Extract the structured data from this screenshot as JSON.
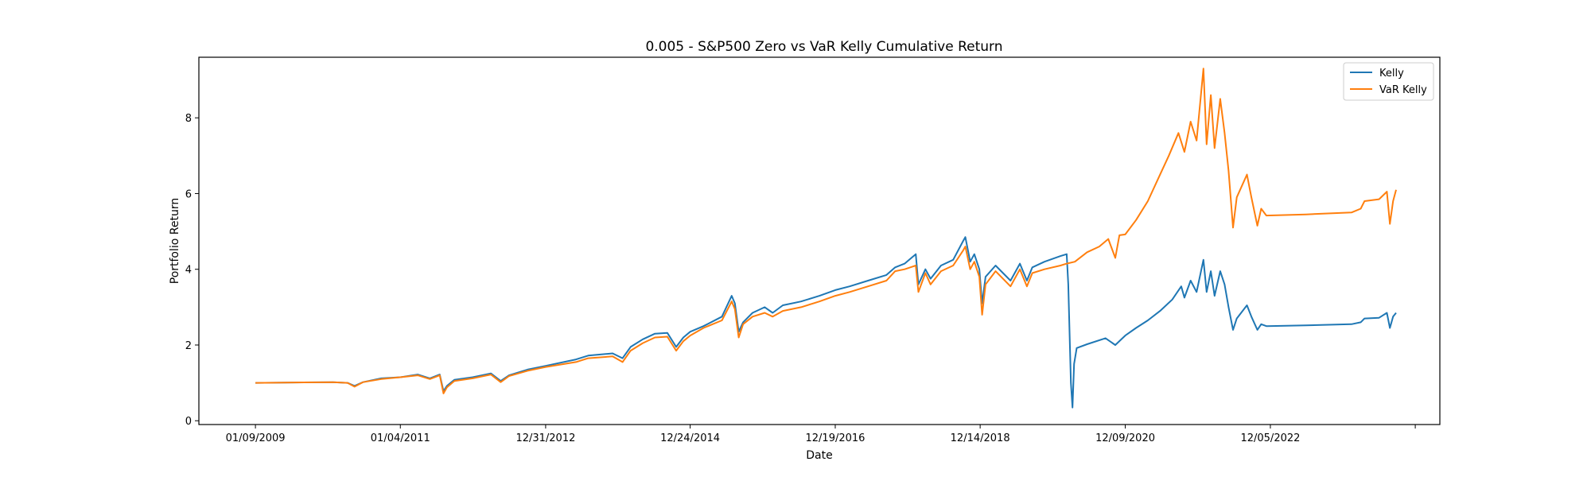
{
  "chart_data": {
    "type": "line",
    "title": "0.005 - S&P500 Zero vs VaR Kelly Cumulative Return",
    "xlabel": "Date",
    "ylabel": "Portfolio Return",
    "xlim": [
      "2008-04-01",
      "2025-04-01"
    ],
    "ylim": [
      -0.1,
      9.6
    ],
    "x_ticks": [
      {
        "date": "2009-01-09",
        "label": "01/09/2009"
      },
      {
        "date": "2011-01-04",
        "label": "01/04/2011"
      },
      {
        "date": "2012-12-31",
        "label": "12/31/2012"
      },
      {
        "date": "2014-12-24",
        "label": "12/24/2014"
      },
      {
        "date": "2016-12-19",
        "label": "12/19/2016"
      },
      {
        "date": "2018-12-14",
        "label": "12/14/2018"
      },
      {
        "date": "2020-12-09",
        "label": "12/09/2020"
      },
      {
        "date": "2022-12-05",
        "label": "12/05/2022"
      },
      {
        "date": "2024-11-29",
        "label": ""
      }
    ],
    "y_ticks": [
      0,
      2,
      4,
      6,
      8
    ],
    "grid": false,
    "legend_position": "top-right",
    "series": [
      {
        "name": "Kelly",
        "color": "#1f77b4",
        "points": [
          [
            "2009-01-09",
            1.0
          ],
          [
            "2010-02-01",
            1.02
          ],
          [
            "2010-04-15",
            1.0
          ],
          [
            "2010-05-20",
            0.92
          ],
          [
            "2010-07-01",
            1.02
          ],
          [
            "2010-10-01",
            1.12
          ],
          [
            "2011-01-04",
            1.15
          ],
          [
            "2011-04-01",
            1.22
          ],
          [
            "2011-06-01",
            1.12
          ],
          [
            "2011-07-20",
            1.22
          ],
          [
            "2011-08-08",
            0.78
          ],
          [
            "2011-08-25",
            0.92
          ],
          [
            "2011-10-01",
            1.08
          ],
          [
            "2012-01-01",
            1.15
          ],
          [
            "2012-04-01",
            1.25
          ],
          [
            "2012-05-20",
            1.05
          ],
          [
            "2012-07-01",
            1.2
          ],
          [
            "2012-10-01",
            1.35
          ],
          [
            "2012-12-31",
            1.45
          ],
          [
            "2013-06-01",
            1.62
          ],
          [
            "2013-08-01",
            1.72
          ],
          [
            "2013-12-01",
            1.78
          ],
          [
            "2014-01-20",
            1.65
          ],
          [
            "2014-03-01",
            1.95
          ],
          [
            "2014-05-01",
            2.15
          ],
          [
            "2014-07-01",
            2.3
          ],
          [
            "2014-09-01",
            2.32
          ],
          [
            "2014-10-15",
            1.95
          ],
          [
            "2014-11-20",
            2.2
          ],
          [
            "2014-12-24",
            2.35
          ],
          [
            "2015-03-01",
            2.5
          ],
          [
            "2015-06-01",
            2.75
          ],
          [
            "2015-07-20",
            3.3
          ],
          [
            "2015-08-05",
            3.1
          ],
          [
            "2015-08-24",
            2.35
          ],
          [
            "2015-09-15",
            2.6
          ],
          [
            "2015-11-01",
            2.85
          ],
          [
            "2016-01-01",
            3.0
          ],
          [
            "2016-02-10",
            2.85
          ],
          [
            "2016-04-01",
            3.05
          ],
          [
            "2016-07-01",
            3.15
          ],
          [
            "2016-10-01",
            3.3
          ],
          [
            "2016-12-19",
            3.45
          ],
          [
            "2017-03-01",
            3.55
          ],
          [
            "2017-06-01",
            3.7
          ],
          [
            "2017-09-01",
            3.85
          ],
          [
            "2017-10-15",
            4.05
          ],
          [
            "2017-12-01",
            4.15
          ],
          [
            "2018-01-26",
            4.4
          ],
          [
            "2018-02-08",
            3.6
          ],
          [
            "2018-03-15",
            4.0
          ],
          [
            "2018-04-10",
            3.75
          ],
          [
            "2018-06-01",
            4.1
          ],
          [
            "2018-08-01",
            4.25
          ],
          [
            "2018-09-20",
            4.75
          ],
          [
            "2018-10-01",
            4.85
          ],
          [
            "2018-10-25",
            4.2
          ],
          [
            "2018-11-15",
            4.4
          ],
          [
            "2018-12-10",
            4.0
          ],
          [
            "2018-12-24",
            3.1
          ],
          [
            "2019-01-10",
            3.8
          ],
          [
            "2019-03-01",
            4.1
          ],
          [
            "2019-05-15",
            3.7
          ],
          [
            "2019-07-01",
            4.15
          ],
          [
            "2019-08-05",
            3.7
          ],
          [
            "2019-09-01",
            4.05
          ],
          [
            "2019-11-01",
            4.2
          ],
          [
            "2020-01-20",
            4.35
          ],
          [
            "2020-02-20",
            4.4
          ],
          [
            "2020-02-28",
            3.6
          ],
          [
            "2020-03-12",
            1.0
          ],
          [
            "2020-03-20",
            0.35
          ],
          [
            "2020-03-28",
            1.5
          ],
          [
            "2020-04-10",
            1.92
          ],
          [
            "2020-06-01",
            2.02
          ],
          [
            "2020-09-01",
            2.18
          ],
          [
            "2020-10-20",
            2.0
          ],
          [
            "2020-12-09",
            2.25
          ],
          [
            "2021-02-01",
            2.45
          ],
          [
            "2021-04-01",
            2.65
          ],
          [
            "2021-06-01",
            2.9
          ],
          [
            "2021-08-01",
            3.2
          ],
          [
            "2021-09-15",
            3.55
          ],
          [
            "2021-10-01",
            3.25
          ],
          [
            "2021-11-01",
            3.7
          ],
          [
            "2021-12-01",
            3.4
          ],
          [
            "2022-01-04",
            4.25
          ],
          [
            "2022-01-20",
            3.4
          ],
          [
            "2022-02-10",
            3.95
          ],
          [
            "2022-03-01",
            3.3
          ],
          [
            "2022-03-29",
            3.95
          ],
          [
            "2022-04-20",
            3.6
          ],
          [
            "2022-05-10",
            3.0
          ],
          [
            "2022-06-01",
            2.4
          ],
          [
            "2022-06-20",
            2.7
          ],
          [
            "2022-08-10",
            3.05
          ],
          [
            "2022-09-01",
            2.75
          ],
          [
            "2022-10-01",
            2.4
          ],
          [
            "2022-10-20",
            2.55
          ],
          [
            "2022-11-15",
            2.5
          ],
          [
            "2023-06-01",
            2.52
          ],
          [
            "2024-01-15",
            2.55
          ],
          [
            "2024-03-01",
            2.6
          ],
          [
            "2024-03-20",
            2.7
          ],
          [
            "2024-06-01",
            2.72
          ],
          [
            "2024-07-10",
            2.85
          ],
          [
            "2024-07-25",
            2.45
          ],
          [
            "2024-08-10",
            2.75
          ],
          [
            "2024-08-25",
            2.85
          ]
        ]
      },
      {
        "name": "VaR Kelly",
        "color": "#ff7f0e",
        "points": [
          [
            "2009-01-09",
            1.0
          ],
          [
            "2010-02-01",
            1.02
          ],
          [
            "2010-04-15",
            1.0
          ],
          [
            "2010-05-20",
            0.9
          ],
          [
            "2010-07-01",
            1.02
          ],
          [
            "2010-10-01",
            1.1
          ],
          [
            "2011-01-04",
            1.15
          ],
          [
            "2011-04-01",
            1.2
          ],
          [
            "2011-06-01",
            1.1
          ],
          [
            "2011-07-20",
            1.2
          ],
          [
            "2011-08-08",
            0.72
          ],
          [
            "2011-08-25",
            0.88
          ],
          [
            "2011-10-01",
            1.05
          ],
          [
            "2012-01-01",
            1.12
          ],
          [
            "2012-04-01",
            1.22
          ],
          [
            "2012-05-20",
            1.02
          ],
          [
            "2012-07-01",
            1.18
          ],
          [
            "2012-10-01",
            1.32
          ],
          [
            "2012-12-31",
            1.42
          ],
          [
            "2013-06-01",
            1.55
          ],
          [
            "2013-08-01",
            1.65
          ],
          [
            "2013-12-01",
            1.7
          ],
          [
            "2014-01-20",
            1.55
          ],
          [
            "2014-03-01",
            1.85
          ],
          [
            "2014-05-01",
            2.05
          ],
          [
            "2014-07-01",
            2.2
          ],
          [
            "2014-09-01",
            2.22
          ],
          [
            "2014-10-15",
            1.85
          ],
          [
            "2014-11-20",
            2.1
          ],
          [
            "2014-12-24",
            2.25
          ],
          [
            "2015-03-01",
            2.45
          ],
          [
            "2015-06-01",
            2.65
          ],
          [
            "2015-07-20",
            3.15
          ],
          [
            "2015-08-05",
            2.95
          ],
          [
            "2015-08-24",
            2.2
          ],
          [
            "2015-09-15",
            2.55
          ],
          [
            "2015-11-01",
            2.75
          ],
          [
            "2016-01-01",
            2.85
          ],
          [
            "2016-02-10",
            2.75
          ],
          [
            "2016-04-01",
            2.9
          ],
          [
            "2016-07-01",
            3.0
          ],
          [
            "2016-10-01",
            3.15
          ],
          [
            "2016-12-19",
            3.3
          ],
          [
            "2017-03-01",
            3.4
          ],
          [
            "2017-06-01",
            3.55
          ],
          [
            "2017-09-01",
            3.7
          ],
          [
            "2017-10-15",
            3.95
          ],
          [
            "2017-12-01",
            4.0
          ],
          [
            "2018-01-26",
            4.1
          ],
          [
            "2018-02-08",
            3.4
          ],
          [
            "2018-03-15",
            3.9
          ],
          [
            "2018-04-10",
            3.6
          ],
          [
            "2018-06-01",
            3.95
          ],
          [
            "2018-08-01",
            4.1
          ],
          [
            "2018-09-20",
            4.5
          ],
          [
            "2018-10-01",
            4.6
          ],
          [
            "2018-10-25",
            4.0
          ],
          [
            "2018-11-15",
            4.2
          ],
          [
            "2018-12-10",
            3.8
          ],
          [
            "2018-12-24",
            2.8
          ],
          [
            "2019-01-10",
            3.6
          ],
          [
            "2019-03-01",
            3.95
          ],
          [
            "2019-05-15",
            3.55
          ],
          [
            "2019-07-01",
            4.0
          ],
          [
            "2019-08-05",
            3.55
          ],
          [
            "2019-09-01",
            3.9
          ],
          [
            "2019-11-01",
            4.0
          ],
          [
            "2020-01-20",
            4.1
          ],
          [
            "2020-02-20",
            4.15
          ],
          [
            "2020-04-01",
            4.2
          ],
          [
            "2020-06-01",
            4.45
          ],
          [
            "2020-08-01",
            4.6
          ],
          [
            "2020-09-15",
            4.8
          ],
          [
            "2020-10-20",
            4.3
          ],
          [
            "2020-11-10",
            4.9
          ],
          [
            "2020-12-09",
            4.92
          ],
          [
            "2021-02-01",
            5.3
          ],
          [
            "2021-04-01",
            5.8
          ],
          [
            "2021-06-01",
            6.5
          ],
          [
            "2021-07-15",
            7.0
          ],
          [
            "2021-09-01",
            7.6
          ],
          [
            "2021-10-01",
            7.1
          ],
          [
            "2021-11-01",
            7.9
          ],
          [
            "2021-12-01",
            7.4
          ],
          [
            "2022-01-04",
            9.3
          ],
          [
            "2022-01-20",
            7.3
          ],
          [
            "2022-02-10",
            8.6
          ],
          [
            "2022-03-01",
            7.2
          ],
          [
            "2022-03-29",
            8.5
          ],
          [
            "2022-04-20",
            7.6
          ],
          [
            "2022-05-10",
            6.6
          ],
          [
            "2022-06-01",
            5.1
          ],
          [
            "2022-06-20",
            5.9
          ],
          [
            "2022-08-10",
            6.5
          ],
          [
            "2022-09-01",
            5.9
          ],
          [
            "2022-10-01",
            5.15
          ],
          [
            "2022-10-20",
            5.6
          ],
          [
            "2022-11-15",
            5.42
          ],
          [
            "2023-06-01",
            5.45
          ],
          [
            "2024-01-15",
            5.5
          ],
          [
            "2024-03-01",
            5.6
          ],
          [
            "2024-03-20",
            5.8
          ],
          [
            "2024-06-01",
            5.85
          ],
          [
            "2024-07-10",
            6.05
          ],
          [
            "2024-07-25",
            5.2
          ],
          [
            "2024-08-10",
            5.8
          ],
          [
            "2024-08-25",
            6.1
          ]
        ]
      }
    ]
  }
}
